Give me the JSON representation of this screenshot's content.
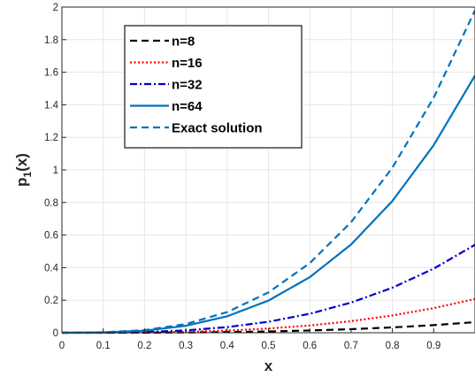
{
  "chart_data": {
    "type": "line",
    "xlabel": "x",
    "ylabel": "p",
    "ylabel_subscript": "1",
    "ylabel_suffix": "(x)",
    "xlim": [
      0,
      1
    ],
    "ylim": [
      0,
      2
    ],
    "xticks": [
      0,
      0.1,
      0.2,
      0.3,
      0.4,
      0.5,
      0.6,
      0.7,
      0.8,
      0.9
    ],
    "xtick_labels": [
      "0",
      "0.1",
      "0.2",
      "0.3",
      "0.4",
      "0.5",
      "0.6",
      "0.7",
      "0.8",
      "0.9"
    ],
    "yticks": [
      0,
      0.2,
      0.4,
      0.6,
      0.8,
      1,
      1.2,
      1.4,
      1.6,
      1.8,
      2
    ],
    "ytick_labels": [
      "0",
      "0.2",
      "0.4",
      "0.6",
      "0.8",
      "1",
      "1.2",
      "1.4",
      "1.6",
      "1.8",
      "2"
    ],
    "grid": true,
    "legend_position": "top-left",
    "x": [
      0,
      0.1,
      0.2,
      0.3,
      0.4,
      0.5,
      0.6,
      0.7,
      0.8,
      0.9,
      1
    ],
    "series": [
      {
        "name": "n=8",
        "color": "#000000",
        "dash": "dashed",
        "values": [
          0,
          0.0001,
          0.0005,
          0.0017,
          0.0041,
          0.008,
          0.0139,
          0.022,
          0.0329,
          0.0468,
          0.065
        ]
      },
      {
        "name": "n=16",
        "color": "#ff0000",
        "dash": "dotted",
        "values": [
          0,
          0.0003,
          0.0017,
          0.0056,
          0.0132,
          0.0259,
          0.0448,
          0.0711,
          0.1062,
          0.1512,
          0.2075
        ]
      },
      {
        "name": "n=32",
        "color": "#0000cc",
        "dash": "dash-dot",
        "values": [
          0,
          0.0009,
          0.0043,
          0.0146,
          0.0346,
          0.0675,
          0.1166,
          0.1852,
          0.2765,
          0.3937,
          0.54
        ]
      },
      {
        "name": "n=64",
        "color": "#0072bd",
        "dash": "solid",
        "values": [
          0,
          0.0025,
          0.0126,
          0.0427,
          0.1011,
          0.1975,
          0.3413,
          0.5419,
          0.809,
          1.1518,
          1.58
        ]
      },
      {
        "name": "Exact solution",
        "color": "#0072bd",
        "dash": "dashed",
        "values": [
          0,
          0.0032,
          0.0158,
          0.0535,
          0.1267,
          0.2475,
          0.4277,
          0.6791,
          1.0138,
          1.4434,
          1.98
        ]
      }
    ]
  }
}
